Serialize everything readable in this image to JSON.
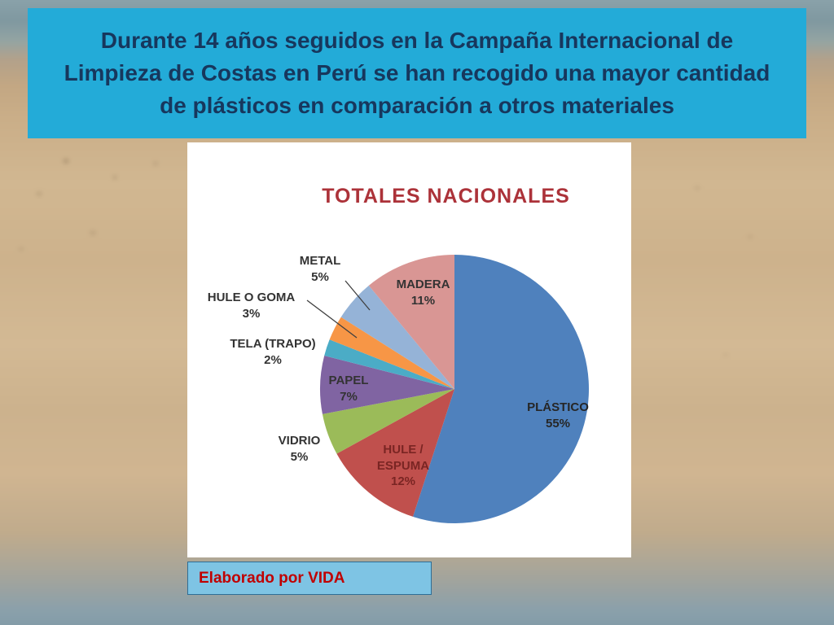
{
  "slide": {
    "header": {
      "text": "Durante 14 años seguidos en la Campaña Internacional de Limpieza de Costas en Perú se han recogido una mayor cantidad de plásticos en comparación a otros materiales",
      "bg_color": "#23abd8",
      "text_color": "#17375d"
    },
    "credit": {
      "text": "Elaborado por VIDA",
      "bg_color": "#7ec4e4",
      "text_color": "#c00000"
    }
  },
  "chart_data": {
    "type": "pie",
    "title": "TOTALES NACIONALES",
    "title_color": "#ac3239",
    "legend_position": "none",
    "direction": "clockwise",
    "start_angle_deg": 0,
    "total": 100,
    "slices": [
      {
        "label": "PLÁSTICO",
        "value": 55,
        "pct": "55%",
        "color": "#4f81bd",
        "label_color": "#262626"
      },
      {
        "label": "HULE / ESPUMA",
        "value": 12,
        "pct": "12%",
        "color": "#c0504d",
        "label_color": "#7a2523"
      },
      {
        "label": "VIDRIO",
        "value": 5,
        "pct": "5%",
        "color": "#9bbb59",
        "label_color": "#333333"
      },
      {
        "label": "PAPEL",
        "value": 7,
        "pct": "7%",
        "color": "#8064a2",
        "label_color": "#333333"
      },
      {
        "label": "TELA (TRAPO)",
        "value": 2,
        "pct": "2%",
        "color": "#4bacc6",
        "label_color": "#333333"
      },
      {
        "label": "HULE O GOMA",
        "value": 3,
        "pct": "3%",
        "color": "#f79646",
        "label_color": "#333333"
      },
      {
        "label": "METAL",
        "value": 5,
        "pct": "5%",
        "color": "#95b3d7",
        "label_color": "#333333"
      },
      {
        "label": "MADERA",
        "value": 11,
        "pct": "11%",
        "color": "#d99694",
        "label_color": "#333333"
      }
    ]
  }
}
